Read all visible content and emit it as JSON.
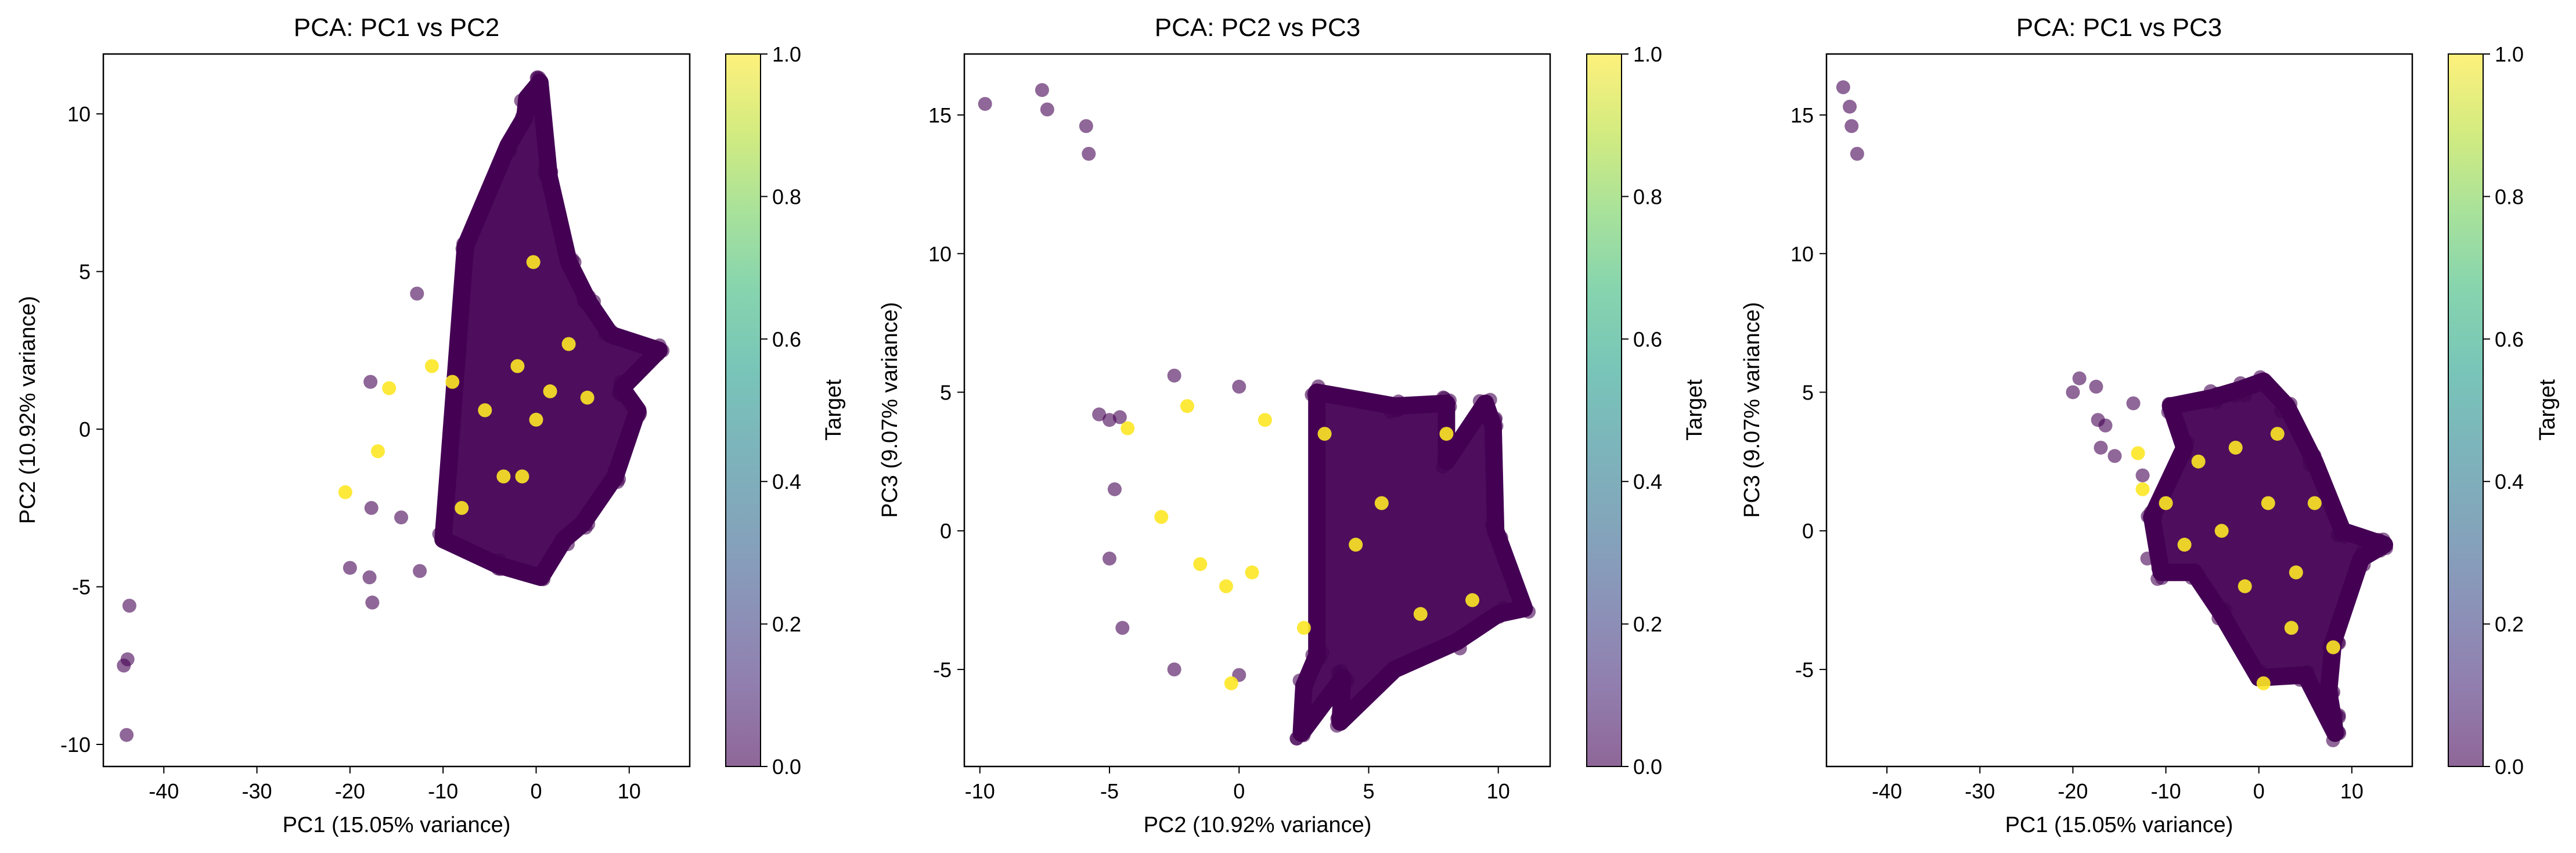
{
  "colormap": {
    "name": "viridis",
    "stops": [
      "#440154",
      "#482878",
      "#3e4989",
      "#31688e",
      "#26828e",
      "#1f9e89",
      "#35b779",
      "#6ece58",
      "#b5de2b",
      "#fde725"
    ],
    "point_color_0": "#440154",
    "point_color_1": "#fde725",
    "alpha": 0.6
  },
  "chart_data": [
    {
      "type": "scatter",
      "title": "PCA: PC1 vs PC2",
      "xlabel": "PC1 (15.05% variance)",
      "ylabel": "PC2 (10.92% variance)",
      "xlim": [
        -46.5,
        16.5
      ],
      "ylim": [
        -10.7,
        11.9
      ],
      "xticks": [
        -40,
        -30,
        -20,
        -10,
        0,
        10
      ],
      "yticks": [
        -10,
        -5,
        0,
        5,
        10
      ],
      "xticklabels": [
        "-40",
        "-30",
        "-20",
        "-10",
        "0",
        "10"
      ],
      "yticklabels": [
        "-10",
        "-5",
        "0",
        "5",
        "10"
      ],
      "grid": false,
      "colorbar": {
        "label": "Target",
        "ticks": [
          "0.0",
          "0.2",
          "0.4",
          "0.6",
          "0.8",
          "1.0"
        ]
      },
      "series": [
        {
          "target": 0,
          "points": [
            [
              -44.3,
              -7.5
            ],
            [
              -43.9,
              -7.3
            ],
            [
              -44.0,
              -9.7
            ],
            [
              -43.7,
              -5.6
            ],
            [
              -17.8,
              1.5
            ],
            [
              -17.7,
              -2.5
            ],
            [
              -17.9,
              -4.7
            ],
            [
              -17.6,
              -5.5
            ],
            [
              -20.0,
              -4.4
            ],
            [
              -12.8,
              4.3
            ],
            [
              -12.5,
              -4.5
            ],
            [
              -7.6,
              5.8
            ],
            [
              -3.0,
              9.0
            ],
            [
              -1.0,
              10.5
            ],
            [
              0.4,
              11.0
            ],
            [
              -1.2,
              9.9
            ],
            [
              1.4,
              8.0
            ],
            [
              3.5,
              5.3
            ],
            [
              5.7,
              4.0
            ],
            [
              8.0,
              3.0
            ],
            [
              9.2,
              1.3
            ],
            [
              10.9,
              0.6
            ],
            [
              13.2,
              2.5
            ],
            [
              8.5,
              -1.5
            ],
            [
              5.0,
              -3.0
            ],
            [
              3.0,
              -3.5
            ],
            [
              0.5,
              -4.7
            ],
            [
              -4.2,
              -4.3
            ],
            [
              -10.0,
              -3.5
            ],
            [
              -14.5,
              -2.8
            ]
          ]
        },
        {
          "target": 1,
          "points": [
            [
              -20.5,
              -2.0
            ],
            [
              -17.0,
              -0.7
            ],
            [
              -15.8,
              1.3
            ],
            [
              -9.0,
              1.5
            ],
            [
              -8.0,
              -2.5
            ],
            [
              -5.5,
              0.6
            ],
            [
              -3.5,
              -1.5
            ],
            [
              -2.0,
              2.0
            ],
            [
              0.0,
              0.3
            ],
            [
              1.5,
              1.2
            ],
            [
              3.5,
              2.7
            ],
            [
              5.5,
              1.0
            ],
            [
              -0.3,
              5.3
            ],
            [
              -1.5,
              -1.5
            ],
            [
              -11.2,
              2.0
            ]
          ]
        }
      ]
    },
    {
      "type": "scatter",
      "title": "PCA: PC2 vs PC3",
      "xlabel": "PC2 (10.92% variance)",
      "ylabel": "PC3 (9.07% variance)",
      "xlim": [
        -10.6,
        12.0
      ],
      "ylim": [
        -8.5,
        17.2
      ],
      "xticks": [
        -10,
        -5,
        0,
        5,
        10
      ],
      "yticks": [
        -5,
        0,
        5,
        10,
        15
      ],
      "xticklabels": [
        "-10",
        "-5",
        "0",
        "5",
        "10"
      ],
      "yticklabels": [
        "-5",
        "0",
        "5",
        "10",
        "15"
      ],
      "grid": false,
      "colorbar": {
        "label": "Target",
        "ticks": [
          "0.0",
          "0.2",
          "0.4",
          "0.6",
          "0.8",
          "1.0"
        ]
      },
      "series": [
        {
          "target": 0,
          "points": [
            [
              -9.8,
              15.4
            ],
            [
              -7.6,
              15.9
            ],
            [
              -7.4,
              15.2
            ],
            [
              -5.9,
              14.6
            ],
            [
              -5.8,
              13.6
            ],
            [
              2.4,
              -7.3
            ],
            [
              3.9,
              -6.9
            ],
            [
              -5.4,
              4.2
            ],
            [
              -5.0,
              4.0
            ],
            [
              -4.6,
              4.1
            ],
            [
              -2.5,
              5.6
            ],
            [
              0.0,
              5.2
            ],
            [
              3.0,
              5.0
            ],
            [
              6.0,
              4.5
            ],
            [
              8.0,
              4.6
            ],
            [
              9.5,
              4.6
            ],
            [
              9.8,
              3.8
            ],
            [
              8.0,
              2.5
            ],
            [
              9.9,
              0.0
            ],
            [
              11.0,
              -2.8
            ],
            [
              10.0,
              -3.0
            ],
            [
              8.4,
              -4.0
            ],
            [
              6.0,
              -5.0
            ],
            [
              4.0,
              -5.3
            ],
            [
              2.5,
              -5.6
            ],
            [
              0.0,
              -5.2
            ],
            [
              -2.5,
              -5.0
            ],
            [
              -4.5,
              -3.5
            ],
            [
              -5.0,
              -1.0
            ],
            [
              -4.8,
              1.5
            ],
            [
              3.0,
              -4.5
            ]
          ]
        },
        {
          "target": 1,
          "points": [
            [
              -0.3,
              -5.5
            ],
            [
              -4.3,
              3.7
            ],
            [
              1.0,
              4.0
            ],
            [
              3.3,
              3.5
            ],
            [
              -1.5,
              -1.2
            ],
            [
              -0.5,
              -2.0
            ],
            [
              2.5,
              -3.5
            ],
            [
              7.0,
              -3.0
            ],
            [
              9.0,
              -2.5
            ],
            [
              -3.0,
              0.5
            ],
            [
              5.5,
              1.0
            ],
            [
              -2.0,
              4.5
            ],
            [
              8.0,
              3.5
            ],
            [
              0.5,
              -1.5
            ],
            [
              4.5,
              -0.5
            ]
          ]
        }
      ]
    },
    {
      "type": "scatter",
      "title": "PCA: PC1 vs PC3",
      "xlabel": "PC1 (15.05% variance)",
      "ylabel": "PC3 (9.07% variance)",
      "xlim": [
        -46.5,
        16.5
      ],
      "ylim": [
        -8.5,
        17.2
      ],
      "xticks": [
        -40,
        -30,
        -20,
        -10,
        0,
        10
      ],
      "yticks": [
        -5,
        0,
        5,
        10,
        15
      ],
      "xticklabels": [
        "-40",
        "-30",
        "-20",
        "-10",
        "0",
        "10"
      ],
      "yticklabels": [
        "-5",
        "0",
        "5",
        "10",
        "15"
      ],
      "grid": false,
      "colorbar": {
        "label": "Target",
        "ticks": [
          "0.0",
          "0.2",
          "0.4",
          "0.6",
          "0.8",
          "1.0"
        ]
      },
      "series": [
        {
          "target": 0,
          "points": [
            [
              -44.7,
              16.0
            ],
            [
              -44.0,
              15.3
            ],
            [
              -43.8,
              14.6
            ],
            [
              -43.2,
              13.6
            ],
            [
              -20.0,
              5.0
            ],
            [
              -19.3,
              5.5
            ],
            [
              -17.5,
              5.2
            ],
            [
              -17.3,
              4.0
            ],
            [
              -17.0,
              3.0
            ],
            [
              -16.5,
              3.8
            ],
            [
              -15.5,
              2.7
            ],
            [
              -13.5,
              4.6
            ],
            [
              -12.5,
              2.0
            ],
            [
              -11.5,
              0.5
            ],
            [
              -12.0,
              -1.0
            ],
            [
              -10.5,
              -1.5
            ],
            [
              -9.5,
              4.5
            ],
            [
              -8.0,
              3.0
            ],
            [
              -5.0,
              4.8
            ],
            [
              -2.0,
              5.1
            ],
            [
              0.5,
              5.4
            ],
            [
              3.0,
              4.5
            ],
            [
              6.0,
              2.5
            ],
            [
              9.0,
              0.0
            ],
            [
              11.0,
              -1.0
            ],
            [
              13.5,
              -0.5
            ],
            [
              8.0,
              -4.0
            ],
            [
              7.5,
              -5.8
            ],
            [
              8.0,
              -6.8
            ],
            [
              8.2,
              -7.3
            ],
            [
              5.0,
              -5.2
            ],
            [
              0.0,
              -5.3
            ],
            [
              -4.0,
              -3.0
            ],
            [
              -7.0,
              -1.5
            ]
          ]
        },
        {
          "target": 1,
          "points": [
            [
              -13.0,
              2.8
            ],
            [
              -10.0,
              1.0
            ],
            [
              -12.5,
              1.5
            ],
            [
              -6.5,
              2.5
            ],
            [
              -4.0,
              0.0
            ],
            [
              -1.5,
              -2.0
            ],
            [
              0.5,
              -5.5
            ],
            [
              2.0,
              3.5
            ],
            [
              4.0,
              -1.5
            ],
            [
              6.0,
              1.0
            ],
            [
              8.0,
              -4.2
            ],
            [
              -8.0,
              -0.5
            ],
            [
              1.0,
              1.0
            ],
            [
              3.5,
              -3.5
            ],
            [
              -2.5,
              3.0
            ]
          ]
        }
      ]
    }
  ]
}
